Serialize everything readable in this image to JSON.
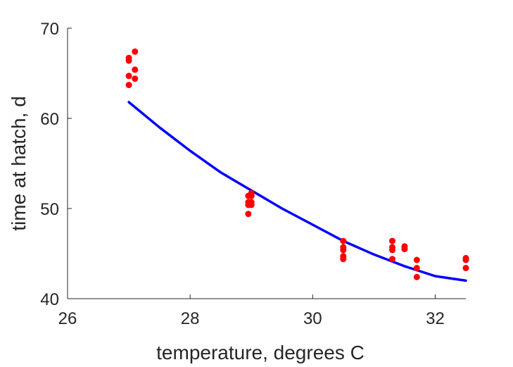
{
  "chart_data": {
    "type": "scatter",
    "title": "",
    "xlabel": "temperature, degrees C",
    "ylabel": "time at hatch, d",
    "xlim": [
      26,
      32.5
    ],
    "ylim": [
      40,
      70
    ],
    "xticks": [
      26,
      28,
      30,
      32
    ],
    "yticks": [
      40,
      50,
      60,
      70
    ],
    "grid": false,
    "legend": "none",
    "series": [
      {
        "kind": "scatter",
        "color": "#ff0000",
        "points": [
          [
            27.0,
            66.7
          ],
          [
            27.0,
            66.4
          ],
          [
            27.0,
            64.7
          ],
          [
            27.0,
            63.7
          ],
          [
            27.1,
            67.4
          ],
          [
            27.1,
            65.4
          ],
          [
            27.1,
            64.4
          ],
          [
            28.95,
            51.4
          ],
          [
            28.95,
            50.7
          ],
          [
            28.95,
            50.4
          ],
          [
            28.95,
            49.4
          ],
          [
            29.0,
            51.7
          ],
          [
            29.0,
            51.4
          ],
          [
            29.0,
            50.7
          ],
          [
            29.0,
            50.4
          ],
          [
            30.5,
            46.4
          ],
          [
            30.5,
            45.7
          ],
          [
            30.5,
            45.4
          ],
          [
            30.5,
            44.7
          ],
          [
            30.5,
            44.4
          ],
          [
            31.3,
            46.4
          ],
          [
            31.3,
            45.7
          ],
          [
            31.3,
            45.4
          ],
          [
            31.3,
            44.4
          ],
          [
            31.5,
            45.8
          ],
          [
            31.5,
            45.5
          ],
          [
            31.7,
            44.3
          ],
          [
            31.7,
            43.4
          ],
          [
            31.7,
            42.4
          ],
          [
            32.5,
            44.5
          ],
          [
            32.5,
            44.3
          ],
          [
            32.5,
            43.4
          ]
        ]
      },
      {
        "kind": "line",
        "color": "#0000ff",
        "points": [
          [
            27.0,
            61.8
          ],
          [
            27.5,
            59.0
          ],
          [
            28.0,
            56.4
          ],
          [
            28.5,
            54.0
          ],
          [
            29.0,
            52.0
          ],
          [
            29.5,
            50.0
          ],
          [
            30.0,
            48.2
          ],
          [
            30.5,
            46.4
          ],
          [
            31.0,
            44.9
          ],
          [
            31.5,
            43.6
          ],
          [
            32.0,
            42.5
          ],
          [
            32.5,
            42.0
          ]
        ]
      }
    ]
  }
}
